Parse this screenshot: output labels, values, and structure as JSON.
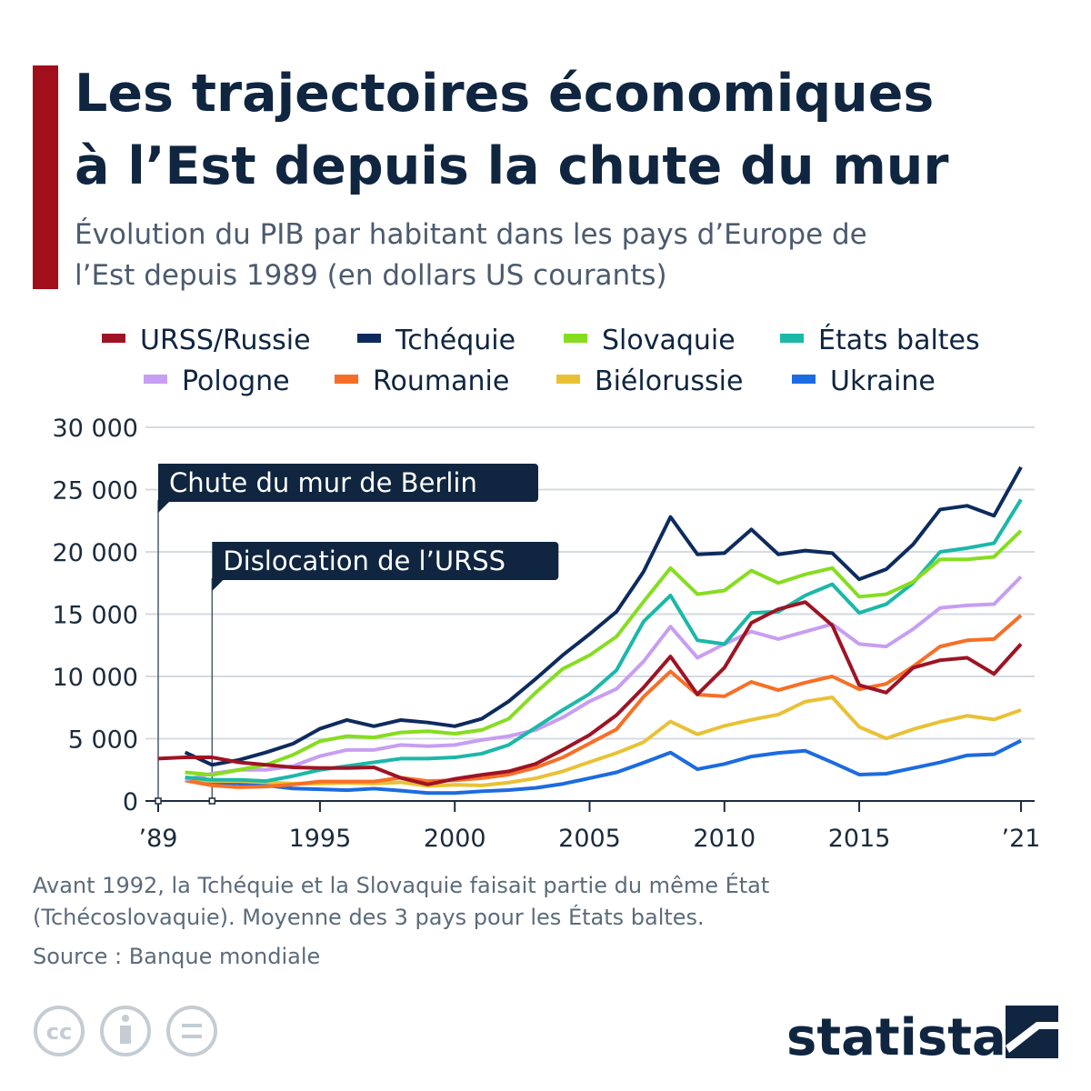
{
  "chart_data": {
    "type": "line",
    "title": [
      "Les trajectoires économiques",
      "à l’Est depuis la chute du mur"
    ],
    "subtitle": [
      "Évolution du PIB par habitant dans les pays d’Europe de",
      "l’Est depuis 1989 (en dollars US courants)"
    ],
    "x": [
      1989,
      1990,
      1991,
      1992,
      1993,
      1994,
      1995,
      1996,
      1997,
      1998,
      1999,
      2000,
      2001,
      2002,
      2003,
      2004,
      2005,
      2006,
      2007,
      2008,
      2009,
      2010,
      2011,
      2012,
      2013,
      2014,
      2015,
      2016,
      2017,
      2018,
      2019,
      2020,
      2021
    ],
    "series": [
      {
        "name": "URSS/Russie",
        "color": "#9e1424",
        "values": [
          3400,
          3500,
          3500,
          3100,
          2900,
          2700,
          2650,
          2650,
          2700,
          1850,
          1330,
          1770,
          2100,
          2380,
          2980,
          4100,
          5300,
          6900,
          9100,
          11600,
          8560,
          10700,
          14300,
          15400,
          15970,
          14100,
          9300,
          8700,
          10700,
          11300,
          11500,
          10200,
          12600
        ]
      },
      {
        "name": "Tchéquie",
        "color": "#0d2b5e",
        "values": [
          null,
          3900,
          2900,
          3300,
          3900,
          4600,
          5800,
          6500,
          6000,
          6500,
          6300,
          6000,
          6600,
          8000,
          9800,
          11700,
          13400,
          15200,
          18400,
          22800,
          19800,
          19900,
          21800,
          19800,
          20100,
          19900,
          17800,
          18600,
          20600,
          23400,
          23700,
          22900,
          26800
        ]
      },
      {
        "name": "Slovaquie",
        "color": "#86dd1f",
        "values": [
          null,
          2300,
          2100,
          2500,
          2900,
          3700,
          4800,
          5200,
          5100,
          5500,
          5600,
          5400,
          5700,
          6600,
          8700,
          10600,
          11700,
          13200,
          16000,
          18700,
          16600,
          16900,
          18500,
          17500,
          18200,
          18700,
          16400,
          16600,
          17600,
          19400,
          19400,
          19600,
          21700
        ]
      },
      {
        "name": "États baltes",
        "color": "#1bb8a8",
        "values": [
          null,
          1900,
          1700,
          1700,
          1600,
          2000,
          2500,
          2800,
          3100,
          3400,
          3400,
          3500,
          3800,
          4500,
          5900,
          7300,
          8600,
          10500,
          14400,
          16500,
          12900,
          12600,
          15100,
          15200,
          16500,
          17400,
          15100,
          15800,
          17500,
          20000,
          20300,
          20700,
          24200
        ]
      },
      {
        "name": "Pologne",
        "color": "#c79ef2",
        "values": [
          null,
          1700,
          2200,
          2500,
          2500,
          2800,
          3600,
          4100,
          4100,
          4500,
          4400,
          4500,
          4900,
          5200,
          5700,
          6700,
          8000,
          9000,
          11200,
          14000,
          11500,
          12600,
          13600,
          13000,
          13600,
          14200,
          12600,
          12400,
          13800,
          15500,
          15700,
          15800,
          18000
        ]
      },
      {
        "name": "Roumanie",
        "color": "#f76f26",
        "values": [
          null,
          1650,
          1250,
          1100,
          1160,
          1320,
          1560,
          1560,
          1560,
          1870,
          1600,
          1660,
          1830,
          2120,
          2680,
          3490,
          4620,
          5760,
          8360,
          10400,
          8540,
          8400,
          9560,
          8900,
          9500,
          10000,
          8970,
          9400,
          10800,
          12400,
          12900,
          13000,
          14900
        ]
      },
      {
        "name": "Biélorussie",
        "color": "#e9c135",
        "values": [
          null,
          1800,
          1600,
          1600,
          1500,
          1400,
          1400,
          1450,
          1400,
          1500,
          1200,
          1300,
          1250,
          1480,
          1820,
          2380,
          3130,
          3850,
          4720,
          6380,
          5350,
          6030,
          6520,
          6940,
          7980,
          8320,
          5950,
          5020,
          5760,
          6360,
          6840,
          6540,
          7300
        ]
      },
      {
        "name": "Ukraine",
        "color": "#1c6be0",
        "values": [
          null,
          1650,
          1500,
          1400,
          1250,
          1000,
          940,
          870,
          990,
          830,
          640,
          640,
          780,
          880,
          1050,
          1370,
          1830,
          2300,
          3070,
          3890,
          2550,
          2970,
          3570,
          3860,
          4030,
          3100,
          2120,
          2190,
          2640,
          3100,
          3660,
          3750,
          4840
        ]
      }
    ],
    "xlim": [
      1989,
      2021
    ],
    "xticks": [
      {
        "value": 1989,
        "label": "’89"
      },
      1995,
      2000,
      2005,
      2010,
      2015,
      {
        "value": 2021,
        "label": "’21"
      }
    ],
    "ylim": [
      0,
      30000
    ],
    "yticks": [
      {
        "value": 0,
        "label": "0"
      },
      {
        "value": 5000,
        "label": "5 000"
      },
      {
        "value": 10000,
        "label": "10 000"
      },
      {
        "value": 15000,
        "label": "15 000"
      },
      {
        "value": 20000,
        "label": "20 000"
      },
      {
        "value": 25000,
        "label": "25 000"
      },
      {
        "value": 30000,
        "label": "30 000"
      }
    ],
    "grid": true,
    "annotations": [
      {
        "text": "Chute du mur de Berlin",
        "x": 1989
      },
      {
        "text": "Dislocation de l’URSS",
        "x": 1991
      }
    ],
    "notes": [
      "Avant 1992, la Tchéquie et la Slovaquie faisait partie du même État",
      "(Tchécoslovaquie). Moyenne des 3 pays pour les États baltes."
    ],
    "source": "Source : Banque mondiale",
    "brand": "statista"
  }
}
